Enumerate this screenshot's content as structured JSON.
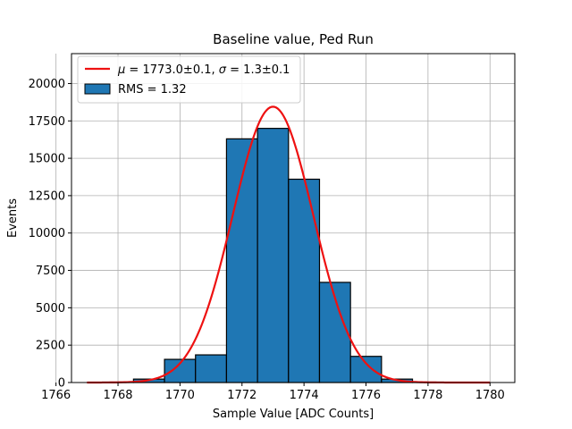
{
  "chart_data": {
    "type": "bar",
    "title": "Baseline value, Ped Run",
    "xlabel": "Sample Value [ADC Counts]",
    "ylabel": "Events",
    "xlim": [
      1766.5,
      1780.8
    ],
    "ylim": [
      0,
      22000
    ],
    "xticks": [
      1766,
      1768,
      1770,
      1772,
      1774,
      1776,
      1778,
      1780
    ],
    "yticks": [
      0,
      2500,
      5000,
      7500,
      10000,
      12500,
      15000,
      17500,
      20000
    ],
    "xtick_labels": [
      "1766",
      "1768",
      "1770",
      "1772",
      "1774",
      "1776",
      "1778",
      "1780"
    ],
    "ytick_labels": [
      "0",
      "2500",
      "5000",
      "7500",
      "10000",
      "12500",
      "15000",
      "17500",
      "20000"
    ],
    "grid": true,
    "legend_position": "top-left",
    "histogram": {
      "name": "RMS = 1.32",
      "color": "#1f77b4",
      "edge_color": "#000000",
      "bins": [
        {
          "x0": 1766.5,
          "x1": 1767.5,
          "count": 0
        },
        {
          "x0": 1767.5,
          "x1": 1768.5,
          "count": 30
        },
        {
          "x0": 1768.5,
          "x1": 1769.5,
          "count": 230
        },
        {
          "x0": 1769.5,
          "x1": 1770.5,
          "count": 1550
        },
        {
          "x0": 1770.5,
          "x1": 1771.5,
          "count": 1850
        },
        {
          "x0": 1771.5,
          "x1": 1772.5,
          "count": 16300
        },
        {
          "x0": 1772.5,
          "x1": 1773.5,
          "count": 17000
        },
        {
          "x0": 1773.5,
          "x1": 1774.5,
          "count": 13600
        },
        {
          "x0": 1774.5,
          "x1": 1775.5,
          "count": 6700
        },
        {
          "x0": 1775.5,
          "x1": 1776.5,
          "count": 1750
        },
        {
          "x0": 1776.5,
          "x1": 1777.5,
          "count": 230
        },
        {
          "x0": 1777.5,
          "x1": 1778.5,
          "count": 30
        },
        {
          "x0": 1778.5,
          "x1": 1779.5,
          "count": 0
        },
        {
          "x0": 1779.5,
          "x1": 1780.5,
          "count": 0
        }
      ]
    },
    "fit": {
      "name_parts": {
        "mu_symbol": "μ",
        "mu_value": " = 1773.0±0.1, ",
        "sigma_symbol": "σ",
        "sigma_value": " = 1.3±0.1"
      },
      "type": "gaussian",
      "amplitude": 18450,
      "mean": 1773.0,
      "sigma": 1.3,
      "x_range": [
        1767,
        1780
      ],
      "color": "#ee1111"
    }
  }
}
